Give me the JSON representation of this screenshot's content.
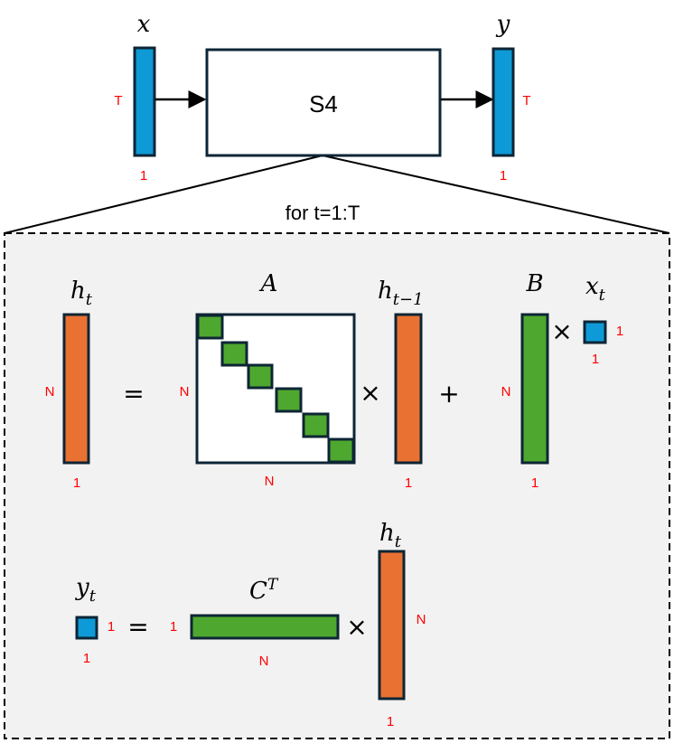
{
  "colors": {
    "input_output": "#0e9ad6",
    "state": "#e97132",
    "parameter": "#4ea72e",
    "dimension_label": "#ff0000",
    "outline": "#0d2535",
    "loop_background": "#f2f2f2"
  },
  "top": {
    "input_label": "x",
    "output_label": "y",
    "block_label": "S4",
    "input_dims": {
      "rows": "T",
      "cols": "1"
    },
    "output_dims": {
      "rows": "T",
      "cols": "1"
    },
    "loop_label": "for t=1:T"
  },
  "state_eq": {
    "h_t": {
      "label": "h",
      "sub": "t",
      "rows": "N",
      "cols": "1"
    },
    "equals": "=",
    "A": {
      "label": "A",
      "rows": "N",
      "cols": "N"
    },
    "times1": "×",
    "h_prev": {
      "label": "h",
      "sub": "t−1",
      "cols": "1"
    },
    "plus": "+",
    "B": {
      "label": "B",
      "rows": "N",
      "cols": "1"
    },
    "times2": "×",
    "x_t": {
      "label": "x",
      "sub": "t",
      "rows": "1",
      "cols": "1"
    }
  },
  "output_eq": {
    "y_t": {
      "label": "y",
      "sub": "t",
      "rows": "1",
      "cols": "1"
    },
    "equals": "=",
    "C": {
      "label": "C",
      "sup": "T",
      "rows": "1",
      "cols": "N"
    },
    "times": "×",
    "h_t": {
      "label": "h",
      "sub": "t",
      "rows": "N",
      "cols": "1"
    }
  }
}
